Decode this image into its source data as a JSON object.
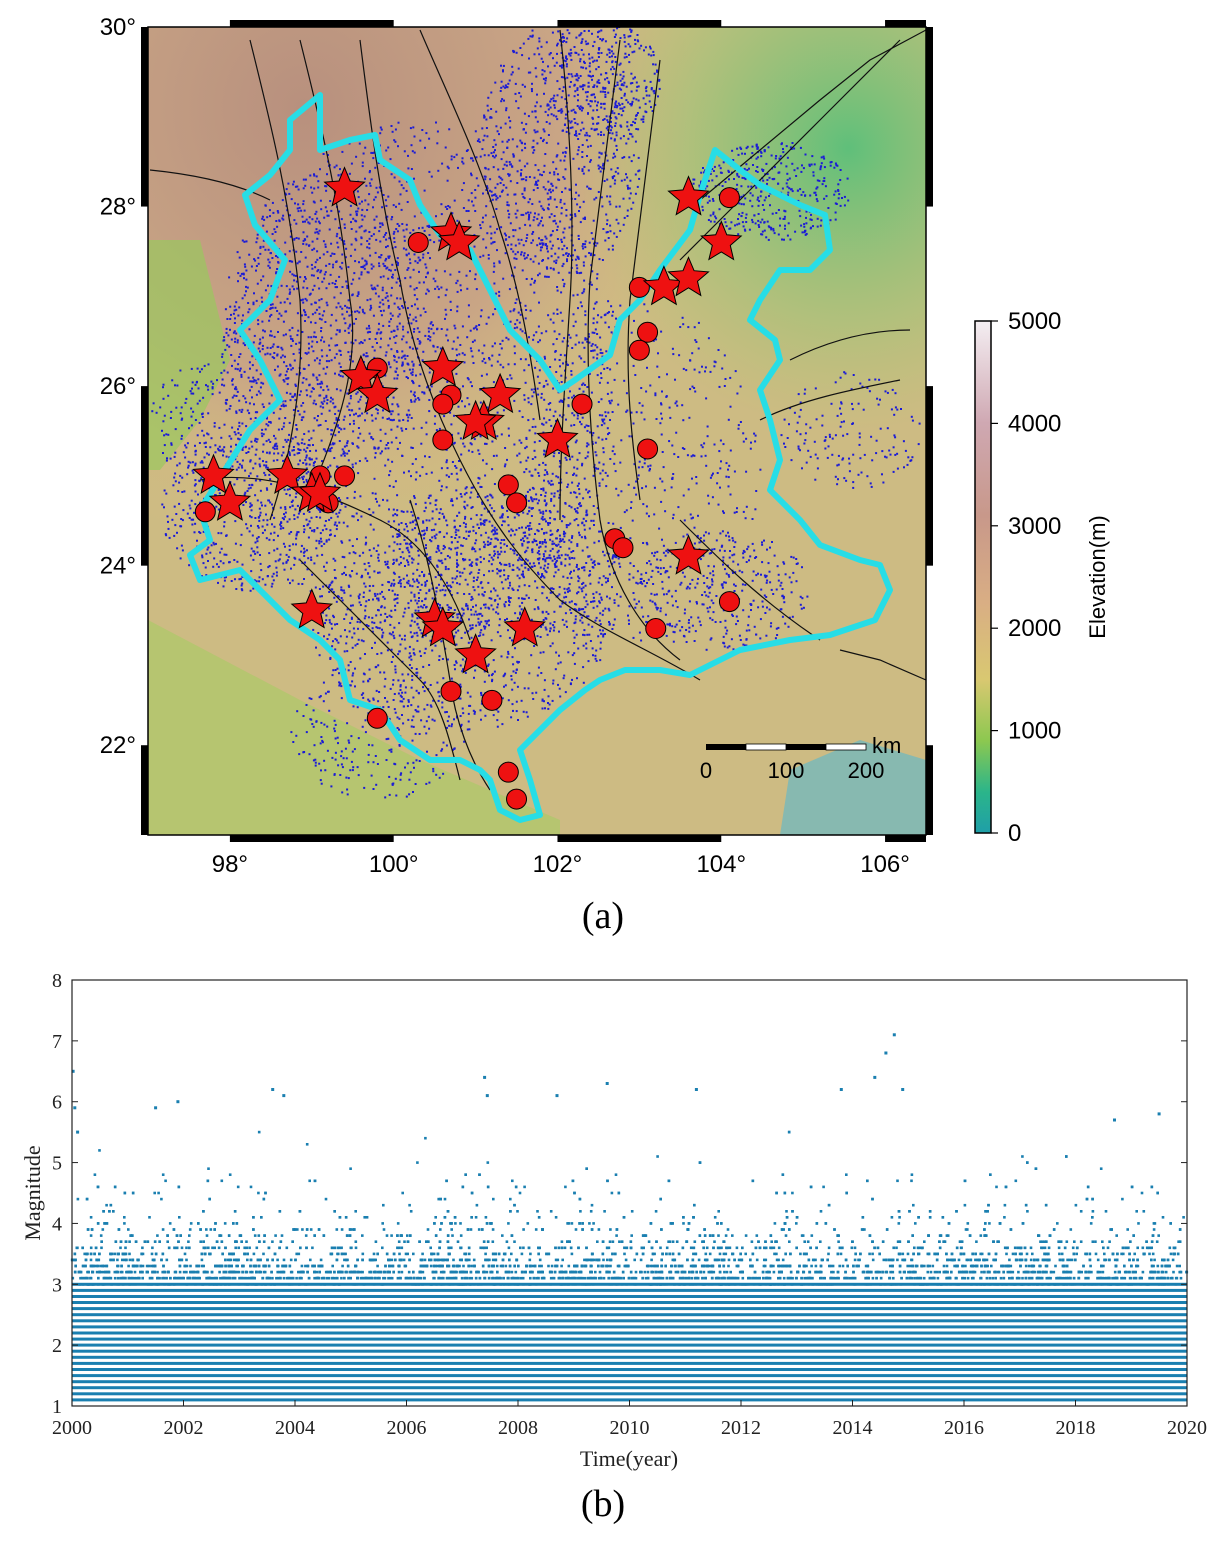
{
  "panel_a": {
    "caption": "(a)",
    "x_ticks": [
      "98°",
      "100°",
      "102°",
      "104°",
      "106°"
    ],
    "y_ticks": [
      "30°",
      "28°",
      "26°",
      "24°",
      "22°"
    ],
    "lon_range": [
      97,
      106.5
    ],
    "lat_range": [
      21,
      30
    ],
    "scalebar": {
      "unit": "km",
      "labels": [
        "0",
        "100",
        "200"
      ]
    },
    "colorbar": {
      "label": "Elevation(m)",
      "ticks": [
        "5000",
        "4000",
        "3000",
        "2000",
        "1000",
        "0"
      ],
      "range": [
        0,
        5000
      ]
    },
    "colors": {
      "seismicity": "#1b1bd6",
      "boundary": "#27dde6",
      "marker": "#ee1111",
      "faults": "#111111"
    },
    "stars": [
      {
        "lon": 99.4,
        "lat": 28.2
      },
      {
        "lon": 100.7,
        "lat": 27.7
      },
      {
        "lon": 100.8,
        "lat": 27.6
      },
      {
        "lon": 103.6,
        "lat": 28.1
      },
      {
        "lon": 104.0,
        "lat": 27.6
      },
      {
        "lon": 103.3,
        "lat": 27.1
      },
      {
        "lon": 103.6,
        "lat": 27.2
      },
      {
        "lon": 99.6,
        "lat": 26.1
      },
      {
        "lon": 99.8,
        "lat": 25.9
      },
      {
        "lon": 100.6,
        "lat": 26.2
      },
      {
        "lon": 101.3,
        "lat": 25.9
      },
      {
        "lon": 101.1,
        "lat": 25.6
      },
      {
        "lon": 101.0,
        "lat": 25.6
      },
      {
        "lon": 102.0,
        "lat": 25.4
      },
      {
        "lon": 97.8,
        "lat": 25.0
      },
      {
        "lon": 98.0,
        "lat": 24.7
      },
      {
        "lon": 98.7,
        "lat": 25.0
      },
      {
        "lon": 99.0,
        "lat": 24.8
      },
      {
        "lon": 99.1,
        "lat": 24.8
      },
      {
        "lon": 103.6,
        "lat": 24.1
      },
      {
        "lon": 99.0,
        "lat": 23.5
      },
      {
        "lon": 100.5,
        "lat": 23.4
      },
      {
        "lon": 100.6,
        "lat": 23.3
      },
      {
        "lon": 101.0,
        "lat": 23.0
      },
      {
        "lon": 101.6,
        "lat": 23.3
      }
    ],
    "circles": [
      {
        "lon": 100.3,
        "lat": 27.6
      },
      {
        "lon": 104.1,
        "lat": 28.1
      },
      {
        "lon": 103.0,
        "lat": 27.1
      },
      {
        "lon": 103.1,
        "lat": 26.6
      },
      {
        "lon": 103.0,
        "lat": 26.4
      },
      {
        "lon": 99.8,
        "lat": 26.2
      },
      {
        "lon": 100.7,
        "lat": 25.9
      },
      {
        "lon": 100.6,
        "lat": 25.8
      },
      {
        "lon": 102.3,
        "lat": 25.8
      },
      {
        "lon": 100.6,
        "lat": 25.4
      },
      {
        "lon": 103.1,
        "lat": 25.3
      },
      {
        "lon": 99.1,
        "lat": 25.0
      },
      {
        "lon": 99.4,
        "lat": 25.0
      },
      {
        "lon": 99.2,
        "lat": 24.7
      },
      {
        "lon": 101.4,
        "lat": 24.9
      },
      {
        "lon": 101.5,
        "lat": 24.7
      },
      {
        "lon": 97.7,
        "lat": 24.6
      },
      {
        "lon": 102.7,
        "lat": 24.3
      },
      {
        "lon": 102.8,
        "lat": 24.2
      },
      {
        "lon": 104.1,
        "lat": 23.6
      },
      {
        "lon": 103.2,
        "lat": 23.3
      },
      {
        "lon": 100.7,
        "lat": 22.6
      },
      {
        "lon": 101.2,
        "lat": 22.5
      },
      {
        "lon": 99.8,
        "lat": 22.3
      },
      {
        "lon": 101.4,
        "lat": 21.7
      },
      {
        "lon": 101.5,
        "lat": 21.4
      }
    ]
  },
  "panel_b": {
    "caption": "(b)",
    "chart_data": {
      "type": "scatter",
      "xlabel": "Time(year)",
      "ylabel": "Magnitude",
      "xlim": [
        2000,
        2020
      ],
      "ylim": [
        1,
        8
      ],
      "x_ticks": [
        "2000",
        "2002",
        "2004",
        "2006",
        "2008",
        "2010",
        "2012",
        "2014",
        "2016",
        "2018",
        "2020"
      ],
      "y_ticks": [
        "1",
        "2",
        "3",
        "4",
        "5",
        "6",
        "7",
        "8"
      ],
      "grid": false,
      "color": "#1a7fb0",
      "notable_events": [
        {
          "x": 2000.02,
          "y": 6.5
        },
        {
          "x": 2000.05,
          "y": 5.9
        },
        {
          "x": 2000.1,
          "y": 5.5
        },
        {
          "x": 2001.5,
          "y": 5.9
        },
        {
          "x": 2001.9,
          "y": 6.0
        },
        {
          "x": 2003.6,
          "y": 6.2
        },
        {
          "x": 2003.8,
          "y": 6.1
        },
        {
          "x": 2007.4,
          "y": 6.4
        },
        {
          "x": 2007.45,
          "y": 6.1
        },
        {
          "x": 2008.7,
          "y": 6.1
        },
        {
          "x": 2009.6,
          "y": 6.3
        },
        {
          "x": 2011.2,
          "y": 6.2
        },
        {
          "x": 2013.8,
          "y": 6.2
        },
        {
          "x": 2014.4,
          "y": 6.4
        },
        {
          "x": 2014.6,
          "y": 6.8
        },
        {
          "x": 2014.75,
          "y": 7.1
        },
        {
          "x": 2014.9,
          "y": 6.2
        },
        {
          "x": 2018.7,
          "y": 5.7
        },
        {
          "x": 2019.5,
          "y": 5.8
        }
      ]
    }
  }
}
